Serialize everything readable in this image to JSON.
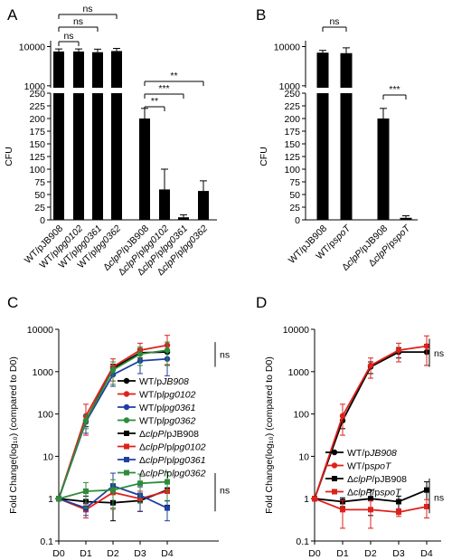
{
  "figure": {
    "panel_letters": [
      "A",
      "B",
      "C",
      "D"
    ]
  },
  "colors": {
    "black": "#000000",
    "red": "#e0201b",
    "blue": "#1f3fa0",
    "green": "#2e8b3a"
  },
  "chart_data": [
    {
      "panel": "A",
      "type": "bar",
      "ylabel": "CFU",
      "y_axis_break": true,
      "ylim_lower": [
        0,
        250
      ],
      "lower_ticks": [
        "0",
        "25",
        "50",
        "75",
        "100",
        "125",
        "150",
        "175",
        "200",
        "225",
        "250"
      ],
      "upper_ticks": [
        "1000",
        "10000"
      ],
      "categories": [
        "WT/pJB908",
        "WT/plpg0102",
        "WT/plpg0361",
        "WT/plpg0362",
        "ΔclpP/pJB908",
        "ΔclpP/plpg0102",
        "ΔclpP/plpg0361",
        "ΔclpP/plpg0362"
      ],
      "values": [
        7500,
        7500,
        7200,
        7700,
        200,
        60,
        5,
        57
      ],
      "errors": [
        1200,
        1200,
        1400,
        1300,
        20,
        40,
        5,
        20
      ],
      "significance": [
        "ns",
        "ns",
        "ns",
        "**",
        "***",
        "**"
      ]
    },
    {
      "panel": "B",
      "type": "bar",
      "ylabel": "CFU",
      "y_axis_break": true,
      "ylim_lower": [
        0,
        250
      ],
      "lower_ticks": [
        "0",
        "25",
        "50",
        "75",
        "100",
        "125",
        "150",
        "175",
        "200",
        "225",
        "250"
      ],
      "upper_ticks": [
        "1000",
        "10000"
      ],
      "categories": [
        "WT/pJB908",
        "WT/pspoT",
        "ΔclpP/pJB908",
        "ΔclpP/pspoT"
      ],
      "values": [
        7000,
        6800,
        200,
        4
      ],
      "errors": [
        1000,
        2500,
        20,
        4
      ],
      "significance": [
        "ns",
        "***"
      ]
    },
    {
      "panel": "C",
      "type": "line",
      "ylabel": "Fold Change(log10) (compared to D0)",
      "yscale": "log",
      "ylim": [
        0.1,
        10000
      ],
      "y_ticks": [
        "0.1",
        "1",
        "10",
        "100",
        "1000",
        "10000"
      ],
      "x": [
        "D0",
        "D1",
        "D2",
        "D3",
        "D4"
      ],
      "series": [
        {
          "name": "WT/pJB908",
          "color": "black",
          "values": [
            1,
            70,
            1200,
            2800,
            2900
          ],
          "errors": [
            0,
            20,
            300,
            700,
            1500
          ]
        },
        {
          "name": "WT/plpg0102",
          "color": "red",
          "values": [
            1,
            90,
            1300,
            3200,
            4200
          ],
          "errors": [
            0,
            80,
            700,
            1500,
            3000
          ]
        },
        {
          "name": "WT/plpg0361",
          "color": "blue",
          "values": [
            1,
            65,
            850,
            1800,
            2000
          ],
          "errors": [
            0,
            30,
            400,
            900,
            1200
          ]
        },
        {
          "name": "WT/plpg0362",
          "color": "green",
          "values": [
            1,
            70,
            1100,
            2600,
            3200
          ],
          "errors": [
            0,
            25,
            600,
            1200,
            1800
          ]
        },
        {
          "name": "ΔclpP/pJB908",
          "color": "black",
          "values": [
            1,
            0.85,
            0.8,
            0.9,
            1.6
          ],
          "errors": [
            0,
            0.3,
            0.5,
            0.4,
            0.9
          ]
        },
        {
          "name": "ΔclpP/plpg0102",
          "color": "red",
          "values": [
            1,
            0.55,
            1.4,
            1.0,
            1.5
          ],
          "errors": [
            0,
            0.2,
            0.8,
            0.5,
            0.9
          ]
        },
        {
          "name": "ΔclpP/plpg0361",
          "color": "blue",
          "values": [
            1,
            0.6,
            2.0,
            1.2,
            0.6
          ],
          "errors": [
            0,
            0.2,
            2.0,
            0.7,
            0.3
          ]
        },
        {
          "name": "ΔclpP/plpg0362",
          "color": "green",
          "values": [
            1,
            1.5,
            1.6,
            2.3,
            2.5
          ],
          "errors": [
            0,
            0.9,
            1.2,
            1.5,
            1.8
          ]
        }
      ],
      "annotations": [
        "ns",
        "ns"
      ]
    },
    {
      "panel": "D",
      "type": "line",
      "ylabel": "Fold Change(log10) (compared to D0)",
      "yscale": "log",
      "ylim": [
        0.1,
        10000
      ],
      "y_ticks": [
        "0.1",
        "1",
        "10",
        "100",
        "1000",
        "10000"
      ],
      "x": [
        "D0",
        "D1",
        "D2",
        "D3",
        "D4"
      ],
      "series": [
        {
          "name": "WT/pJB908",
          "color": "black",
          "values": [
            1,
            70,
            1300,
            2900,
            2900
          ],
          "errors": [
            0,
            25,
            400,
            800,
            1500
          ]
        },
        {
          "name": "WT/pspoT",
          "color": "red",
          "values": [
            1,
            90,
            1400,
            3200,
            4000
          ],
          "errors": [
            0,
            80,
            700,
            1500,
            3000
          ]
        },
        {
          "name": "ΔclpP/pJB908",
          "color": "black",
          "values": [
            1,
            0.85,
            1.0,
            0.85,
            1.6
          ],
          "errors": [
            0,
            0.2,
            0.6,
            0.3,
            0.9
          ]
        },
        {
          "name": "ΔclpP/pspoT",
          "color": "red",
          "values": [
            1,
            0.55,
            0.55,
            0.48,
            0.65
          ],
          "errors": [
            0,
            0.35,
            0.35,
            0.1,
            0.3
          ]
        }
      ],
      "annotations": [
        "ns",
        "ns"
      ]
    }
  ]
}
